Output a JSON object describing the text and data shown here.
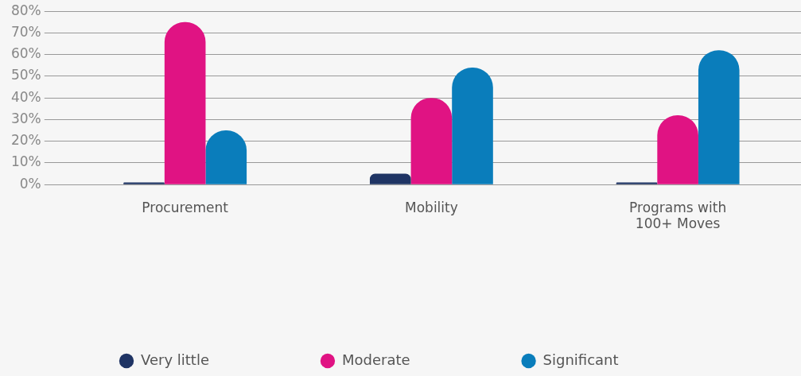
{
  "chart_data": {
    "type": "bar",
    "categories": [
      "Procurement",
      "Mobility",
      "Programs with 100+ Moves"
    ],
    "series": [
      {
        "name": "Very little",
        "color": "#1f3464",
        "values": [
          1,
          5,
          1
        ]
      },
      {
        "name": "Moderate",
        "color": "#e01383",
        "values": [
          75,
          40,
          32
        ]
      },
      {
        "name": "Significant",
        "color": "#0a7dbb",
        "values": [
          25,
          54,
          62
        ]
      }
    ],
    "ylim": [
      0,
      80
    ],
    "yticks": [
      {
        "value": 0,
        "label": "0%"
      },
      {
        "value": 10,
        "label": "10%"
      },
      {
        "value": 20,
        "label": "20%"
      },
      {
        "value": 30,
        "label": "30%"
      },
      {
        "value": 40,
        "label": "40%"
      },
      {
        "value": 50,
        "label": "50%"
      },
      {
        "value": 60,
        "label": "60%"
      },
      {
        "value": 70,
        "label": "70%"
      },
      {
        "value": 80,
        "label": "80%"
      }
    ],
    "grid": "y",
    "legend": "bottom"
  }
}
